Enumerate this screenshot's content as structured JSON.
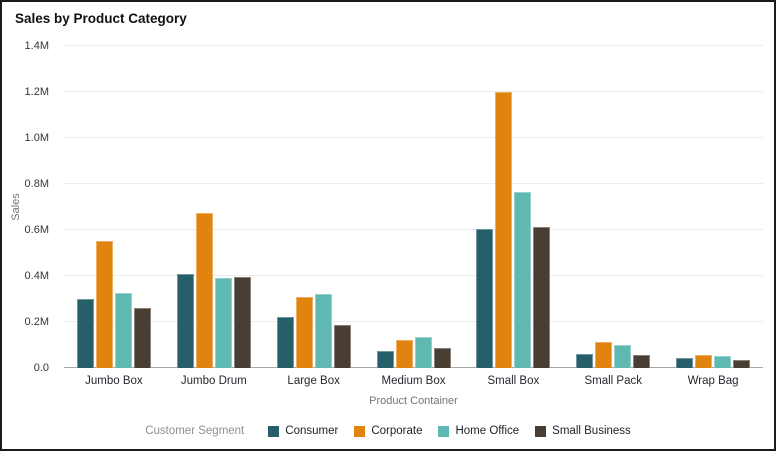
{
  "chart_data": {
    "type": "bar",
    "title": "Sales by Product Category",
    "xlabel": "Product Container",
    "ylabel": "Sales",
    "legend_title": "Customer Segment",
    "legend_position": "bottom",
    "grid": true,
    "ylim_millions": [
      0,
      1.4
    ],
    "ytick_step_millions": 0.2,
    "yticks": [
      {
        "value": 0.0,
        "label": "0.0"
      },
      {
        "value": 0.2,
        "label": "0.2M"
      },
      {
        "value": 0.4,
        "label": "0.4M"
      },
      {
        "value": 0.6,
        "label": "0.6M"
      },
      {
        "value": 0.8,
        "label": "0.8M"
      },
      {
        "value": 1.0,
        "label": "1.0M"
      },
      {
        "value": 1.2,
        "label": "1.2M"
      },
      {
        "value": 1.4,
        "label": "1.4M"
      }
    ],
    "categories": [
      "Jumbo Box",
      "Jumbo Drum",
      "Large Box",
      "Medium Box",
      "Small Box",
      "Small Pack",
      "Wrap Bag"
    ],
    "series": [
      {
        "name": "Consumer",
        "color": "#265f69",
        "values_millions": [
          0.3,
          0.41,
          0.22,
          0.075,
          0.605,
          0.06,
          0.045
        ]
      },
      {
        "name": "Corporate",
        "color": "#e0830f",
        "values_millions": [
          0.55,
          0.675,
          0.31,
          0.12,
          1.2,
          0.115,
          0.055
        ]
      },
      {
        "name": "Home Office",
        "color": "#5fb8b2",
        "values_millions": [
          0.325,
          0.39,
          0.32,
          0.135,
          0.765,
          0.1,
          0.05
        ]
      },
      {
        "name": "Small Business",
        "color": "#483e34",
        "values_millions": [
          0.26,
          0.395,
          0.185,
          0.085,
          0.615,
          0.055,
          0.035
        ]
      }
    ],
    "colors": {
      "frame_border": "#1a1a1a",
      "gridline": "#ebebf0",
      "axis_line": "#a6a6a6",
      "tick_text": "#32373d",
      "axis_title_text": "#757575",
      "legend_title_text": "#8f8f8f"
    }
  }
}
